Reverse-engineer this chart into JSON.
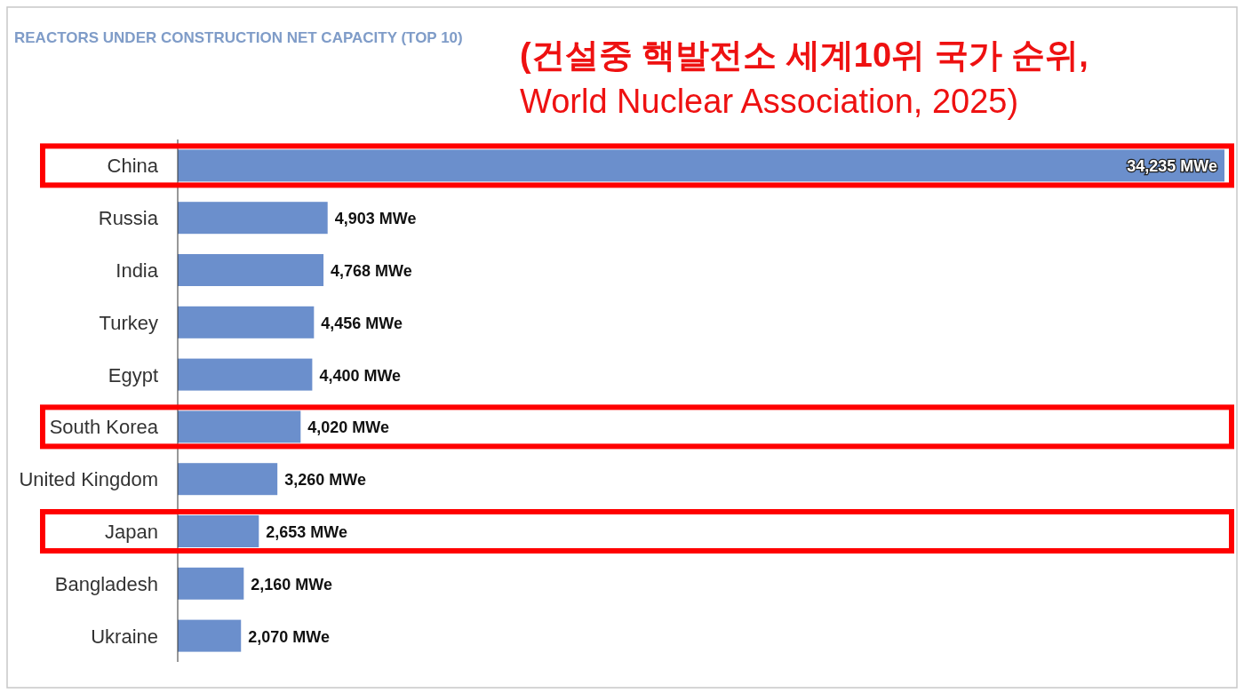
{
  "chart_data": {
    "type": "bar",
    "orientation": "horizontal",
    "title": "REACTORS UNDER CONSTRUCTION NET CAPACITY (TOP 10)",
    "subtitle": "(건설중 핵발전소 세계10위 국가 순위,\nWorld Nuclear Association, 2025)",
    "categories": [
      "China",
      "Russia",
      "India",
      "Turkey",
      "Egypt",
      "South Korea",
      "United Kingdom",
      "Japan",
      "Bangladesh",
      "Ukraine"
    ],
    "values": [
      34235,
      4903,
      4768,
      4456,
      4400,
      4020,
      3260,
      2653,
      2160,
      2070
    ],
    "value_labels": [
      "34,235 MWe",
      "4,903 MWe",
      "4,768 MWe",
      "4,456 MWe",
      "4,400 MWe",
      "4,020 MWe",
      "3,260 MWe",
      "2,653 MWe",
      "2,160 MWe",
      "2,070 MWe"
    ],
    "color": "#6b8fcc"
  }
}
